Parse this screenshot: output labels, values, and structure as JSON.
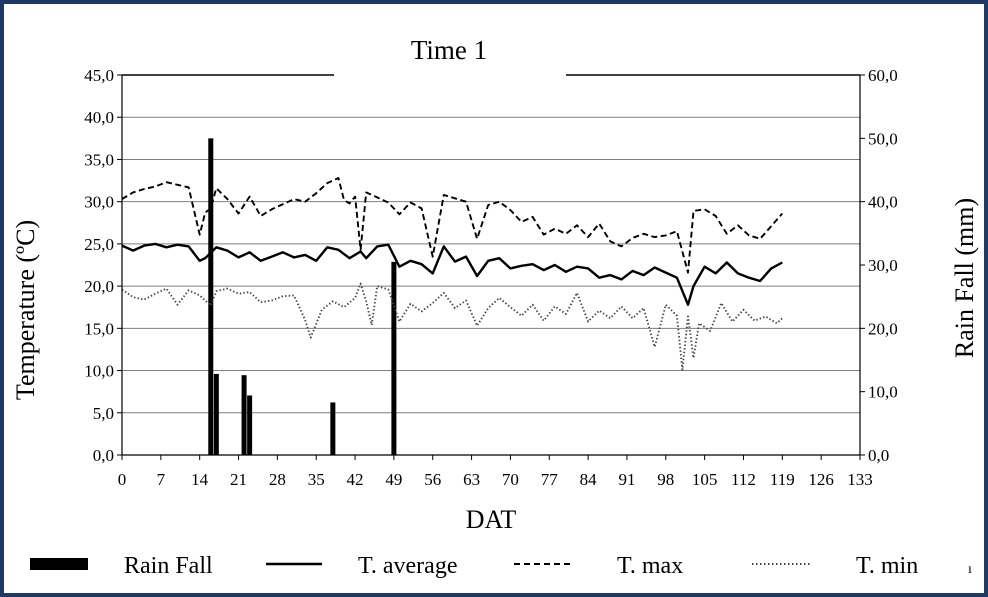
{
  "colors": {
    "frame": "#1f3864",
    "grid": "#7f7f7f",
    "series": "#000000",
    "tmin": "#444444"
  },
  "chart_data": {
    "type": "line",
    "title": "Time 1",
    "xlabel": "DAT",
    "ylabel_left": "Temperature (ºC)",
    "ylabel_right": "Rain Fall (mm)",
    "xlim": [
      0,
      133
    ],
    "x_ticks": [
      "0",
      "7",
      "14",
      "21",
      "28",
      "35",
      "42",
      "49",
      "56",
      "63",
      "70",
      "77",
      "84",
      "91",
      "98",
      "105",
      "112",
      "119",
      "126",
      "133"
    ],
    "ylim_left": [
      0,
      45
    ],
    "y_ticks_left": [
      "0,0",
      "5,0",
      "10,0",
      "15,0",
      "20,0",
      "25,0",
      "30,0",
      "35,0",
      "40,0",
      "45,0"
    ],
    "ylim_right": [
      0,
      60
    ],
    "y_ticks_right": [
      "0,0",
      "10,0",
      "20,0",
      "30,0",
      "40,0",
      "50,0",
      "60,0"
    ],
    "grid": true,
    "legend_placement": "bottom",
    "rainfall": {
      "name": "Rain Fall",
      "axis": "right",
      "x": [
        16,
        17,
        22,
        23,
        38,
        49
      ],
      "values": [
        50.0,
        12.8,
        12.6,
        9.4,
        8.3,
        30.5
      ]
    },
    "series": [
      {
        "name": "T. average",
        "style": "solid",
        "x": [
          0,
          2,
          4,
          6,
          8,
          10,
          12,
          14,
          15,
          17,
          19,
          21,
          23,
          25,
          27,
          29,
          31,
          33,
          35,
          37,
          39,
          41,
          43,
          44,
          46,
          48,
          50,
          52,
          54,
          56,
          58,
          60,
          62,
          64,
          66,
          68,
          70,
          72,
          74,
          76,
          78,
          80,
          82,
          84,
          86,
          88,
          90,
          92,
          94,
          96,
          98,
          100,
          102,
          103,
          105,
          107,
          109,
          111,
          113,
          115,
          117,
          119
        ],
        "values": [
          24.8,
          24.2,
          24.8,
          25.0,
          24.6,
          24.9,
          24.7,
          23.0,
          23.3,
          24.6,
          24.2,
          23.4,
          24.0,
          23.0,
          23.5,
          24.0,
          23.4,
          23.7,
          23.0,
          24.6,
          24.3,
          23.3,
          24.1,
          23.3,
          24.7,
          24.9,
          22.3,
          23.0,
          22.6,
          21.5,
          24.7,
          22.9,
          23.5,
          21.2,
          23.0,
          23.3,
          22.1,
          22.4,
          22.6,
          21.9,
          22.5,
          21.7,
          22.3,
          22.1,
          21.0,
          21.3,
          20.8,
          21.8,
          21.3,
          22.2,
          21.6,
          21.0,
          17.8,
          20.0,
          22.3,
          21.5,
          22.8,
          21.5,
          21.0,
          20.6,
          22.1,
          22.8
        ]
      },
      {
        "name": "T. max",
        "style": "dashed",
        "x": [
          0,
          2,
          4,
          6,
          8,
          10,
          12,
          14,
          15,
          16,
          17,
          19,
          21,
          23,
          25,
          27,
          29,
          31,
          33,
          35,
          37,
          39,
          40,
          41,
          42,
          43,
          44,
          46,
          48,
          50,
          52,
          54,
          56,
          58,
          60,
          62,
          64,
          66,
          68,
          70,
          72,
          74,
          76,
          78,
          80,
          82,
          84,
          86,
          88,
          90,
          92,
          94,
          96,
          98,
          100,
          102,
          103,
          105,
          107,
          109,
          111,
          113,
          115,
          117,
          119
        ],
        "values": [
          30.3,
          31.1,
          31.5,
          31.8,
          32.3,
          32.0,
          31.7,
          26.1,
          28.7,
          29.2,
          31.6,
          30.3,
          28.6,
          30.6,
          28.3,
          29.1,
          29.7,
          30.3,
          30.0,
          31.0,
          32.2,
          32.8,
          30.2,
          29.8,
          30.6,
          24.3,
          31.1,
          30.5,
          29.9,
          28.5,
          29.9,
          29.2,
          23.5,
          30.8,
          30.4,
          30.0,
          25.6,
          29.6,
          30.0,
          29.0,
          27.6,
          28.2,
          26.1,
          26.8,
          26.2,
          27.2,
          25.8,
          27.4,
          25.3,
          24.7,
          25.7,
          26.2,
          25.8,
          26.0,
          26.5,
          21.6,
          28.9,
          29.1,
          28.3,
          26.2,
          27.2,
          26.0,
          25.6,
          27.1,
          28.6
        ]
      },
      {
        "name": "T. min",
        "style": "dotted",
        "x": [
          0,
          2,
          4,
          6,
          8,
          10,
          12,
          14,
          16,
          17,
          19,
          21,
          23,
          25,
          27,
          29,
          31,
          33,
          34,
          36,
          38,
          40,
          42,
          43,
          44,
          45,
          46,
          48,
          50,
          52,
          54,
          56,
          58,
          60,
          62,
          64,
          66,
          68,
          70,
          72,
          74,
          76,
          78,
          80,
          82,
          84,
          86,
          88,
          90,
          92,
          94,
          96,
          98,
          100,
          101,
          102,
          103,
          104,
          106,
          108,
          110,
          112,
          114,
          116,
          118,
          119
        ],
        "values": [
          19.6,
          18.7,
          18.4,
          19.1,
          19.7,
          17.8,
          19.5,
          18.9,
          17.7,
          19.4,
          19.7,
          19.1,
          19.3,
          18.1,
          18.3,
          18.8,
          18.9,
          16.0,
          13.9,
          17.2,
          18.2,
          17.5,
          18.6,
          20.3,
          18.2,
          15.4,
          20.0,
          19.6,
          15.8,
          17.9,
          17.0,
          18.0,
          19.2,
          17.4,
          18.3,
          15.3,
          17.4,
          18.6,
          17.5,
          16.5,
          17.8,
          15.9,
          17.6,
          16.7,
          19.2,
          15.8,
          17.1,
          16.2,
          17.6,
          16.2,
          17.4,
          12.8,
          17.8,
          16.5,
          10.1,
          16.4,
          11.5,
          15.6,
          14.7,
          18.0,
          15.8,
          17.2,
          15.9,
          16.4,
          15.6,
          16.2
        ]
      }
    ]
  },
  "legend": {
    "rainfall_label": "Rain Fall",
    "tavg_label": "T. average",
    "tmax_label": "T. max",
    "tmin_label": "T. min",
    "stray_mark": "ı"
  }
}
